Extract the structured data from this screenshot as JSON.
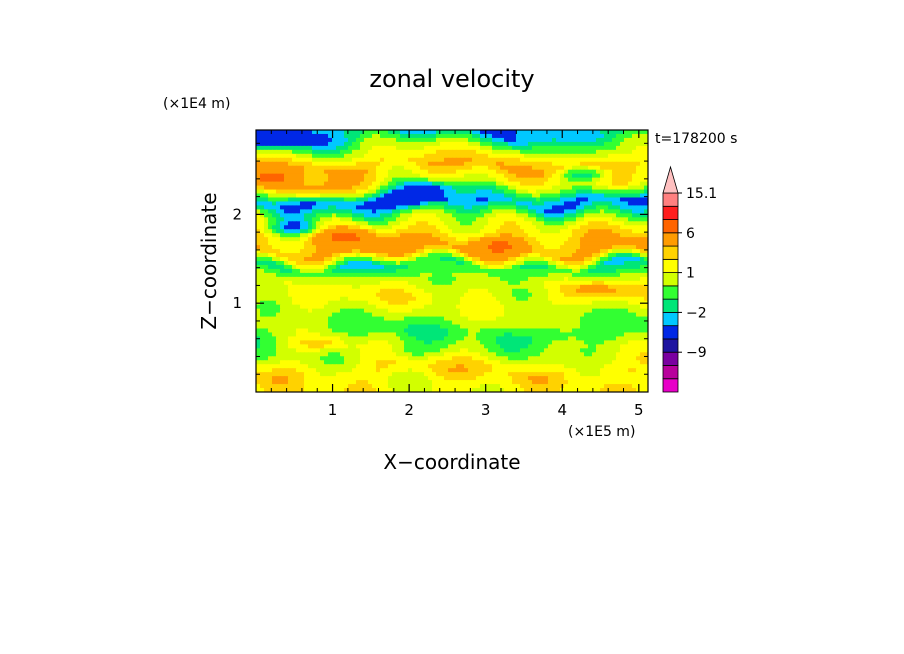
{
  "chart_data": {
    "type": "heatmap",
    "title": "zonal velocity",
    "xlabel": "X−coordinate",
    "ylabel": "Z−coordinate",
    "x_multiplier": "(×1E5 m)",
    "y_multiplier": "(×1E4 m)",
    "time_label": "t=178200 s",
    "x_ticks": [
      "1",
      "2",
      "3",
      "4",
      "5"
    ],
    "x_tick_values": [
      1,
      2,
      3,
      4,
      5
    ],
    "y_ticks": [
      "1",
      "2"
    ],
    "y_tick_values": [
      1,
      2
    ],
    "xlim": [
      0,
      5.12
    ],
    "ylim": [
      0,
      2.95
    ],
    "colorbar": {
      "levels": [
        -15,
        -12,
        -9,
        -6,
        -3,
        -2,
        -1,
        0,
        1,
        2,
        3,
        6,
        9,
        12,
        15.1
      ],
      "colors": [
        "#e800c8",
        "#b8009c",
        "#7a00a0",
        "#1e14a0",
        "#0028e6",
        "#00c8ff",
        "#00e678",
        "#32ff32",
        "#d2ff00",
        "#ffff00",
        "#ffd200",
        "#ff9b00",
        "#ff6400",
        "#ff1e1e",
        "#ff8080",
        "#ffc0c0"
      ],
      "labels": [
        "15.1",
        "6",
        "1",
        "−2",
        "−9"
      ],
      "label_values": [
        15.1,
        6,
        1,
        -2,
        -9
      ]
    },
    "bands": [
      {
        "z": 0.08,
        "u": 1.5
      },
      {
        "z": 0.25,
        "u": 2.0
      },
      {
        "z": 0.45,
        "u": 0.5
      },
      {
        "z": 0.65,
        "u": -0.5
      },
      {
        "z": 0.85,
        "u": 0.3
      },
      {
        "z": 1.05,
        "u": 1.4
      },
      {
        "z": 1.25,
        "u": 0.8
      },
      {
        "z": 1.42,
        "u": -1.5
      },
      {
        "z": 1.58,
        "u": 3.5
      },
      {
        "z": 1.75,
        "u": 2.5
      },
      {
        "z": 1.95,
        "u": 0.5
      },
      {
        "z": 2.15,
        "u": -3.0
      },
      {
        "z": 2.35,
        "u": 1.5
      },
      {
        "z": 2.55,
        "u": 3.0
      },
      {
        "z": 2.75,
        "u": 0.2
      },
      {
        "z": 2.92,
        "u": -2.5
      }
    ],
    "blobs": [
      {
        "x": 0.5,
        "z": 1.85,
        "u": -4.0
      },
      {
        "x": 2.0,
        "z": 2.15,
        "u": -4.0
      },
      {
        "x": 2.3,
        "z": 2.3,
        "u": -4.0
      },
      {
        "x": 4.3,
        "z": 2.45,
        "u": -4.0
      },
      {
        "x": 0.3,
        "z": 2.83,
        "u": -4.0
      },
      {
        "x": 0.2,
        "z": 2.4,
        "u": 4.0
      },
      {
        "x": 0.7,
        "z": 2.25,
        "u": 4.0
      },
      {
        "x": 1.2,
        "z": 1.75,
        "u": 4.0
      },
      {
        "x": 3.2,
        "z": 1.65,
        "u": 4.0
      },
      {
        "x": 2.0,
        "z": 0.45,
        "u": -1.5
      },
      {
        "x": 3.8,
        "z": 0.65,
        "u": -1.5
      },
      {
        "x": 0.9,
        "z": 0.55,
        "u": 2.5
      },
      {
        "x": 4.5,
        "z": 1.15,
        "u": 2.5
      }
    ]
  }
}
